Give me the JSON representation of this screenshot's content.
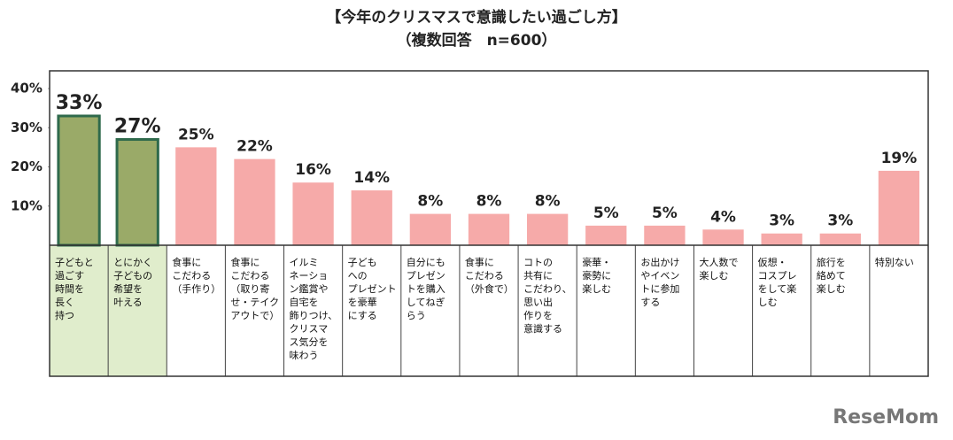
{
  "chart_data": {
    "type": "bar",
    "title": "【今年のクリスマスで意識したい過ごし方】",
    "subtitle": "（複数回答　n=600）",
    "categories": [
      "子どもと\n過ごす\n時間を\n長く\n持つ",
      "とにかく\n子どもの\n希望を\n叶える",
      "食事に\nこだわる\n（手作り）",
      "食事に\nこだわる\n（取り寄\nせ・テイク\nアウトで）",
      "イルミ\nネーショ\nン鑑賞や\n自宅を\n飾りつけ、\nクリスマ\nス気分を\n味わう",
      "子ども\nへの\nプレゼント\nを豪華\nにする",
      "自分にも\nプレゼン\nトを購入\nしてねぎ\nらう",
      "食事に\nこだわる\n（外食で）",
      "コトの\n共有に\nこだわり、\n思い出\n作りを\n意識する",
      "豪華・\n豪勢に\n楽しむ",
      "お出かけ\nやイベン\nトに参加\nする",
      "大人数で\n楽しむ",
      "仮想・\nコスプレ\nをして楽\nしむ",
      "旅行を\n絡めて\n楽しむ",
      "特別ない"
    ],
    "values": [
      33,
      27,
      25,
      22,
      16,
      14,
      8,
      8,
      8,
      5,
      5,
      4,
      3,
      3,
      19
    ],
    "value_labels": [
      "33%",
      "27%",
      "25%",
      "22%",
      "16%",
      "14%",
      "8%",
      "8%",
      "8%",
      "5%",
      "5%",
      "4%",
      "3%",
      "3%",
      "19%"
    ],
    "color": "#f6aaa9",
    "highlighted": [
      0,
      1
    ],
    "highlight_color": "#9aaa68",
    "highlight_border": "#2f6a4c",
    "highlight_cell_color": "#e0edcc",
    "ylim": [
      0,
      40
    ],
    "yticks": [
      {
        "value": 10,
        "label": "10%"
      },
      {
        "value": 20,
        "label": "20%"
      },
      {
        "value": 30,
        "label": "30%"
      },
      {
        "value": 40,
        "label": "40%"
      }
    ],
    "watermark": "ReseMom"
  }
}
